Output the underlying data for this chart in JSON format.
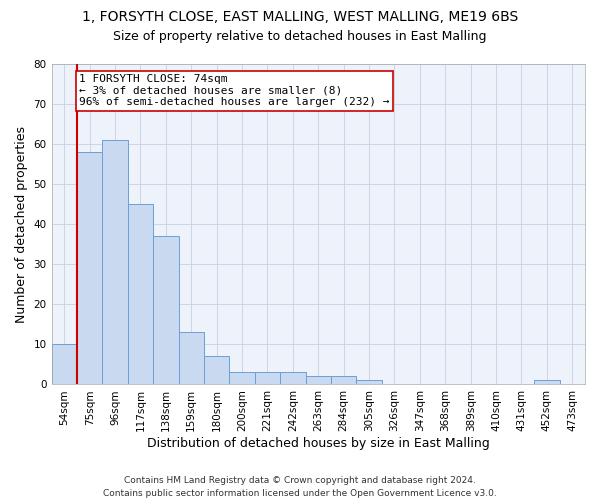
{
  "title1": "1, FORSYTH CLOSE, EAST MALLING, WEST MALLING, ME19 6BS",
  "title2": "Size of property relative to detached houses in East Malling",
  "xlabel": "Distribution of detached houses by size in East Malling",
  "ylabel": "Number of detached properties",
  "categories": [
    "54sqm",
    "75sqm",
    "96sqm",
    "117sqm",
    "138sqm",
    "159sqm",
    "180sqm",
    "200sqm",
    "221sqm",
    "242sqm",
    "263sqm",
    "284sqm",
    "305sqm",
    "326sqm",
    "347sqm",
    "368sqm",
    "389sqm",
    "410sqm",
    "431sqm",
    "452sqm",
    "473sqm"
  ],
  "values": [
    10,
    58,
    61,
    45,
    37,
    13,
    7,
    3,
    3,
    3,
    2,
    2,
    1,
    0,
    0,
    0,
    0,
    0,
    0,
    1,
    0
  ],
  "bar_color": "#c9d9f0",
  "bar_edge_color": "#6a9fd8",
  "vline_color": "#cc0000",
  "annotation_text": "1 FORSYTH CLOSE: 74sqm\n← 3% of detached houses are smaller (8)\n96% of semi-detached houses are larger (232) →",
  "annotation_box_color": "white",
  "annotation_box_edge_color": "#cc0000",
  "ylim": [
    0,
    80
  ],
  "yticks": [
    0,
    10,
    20,
    30,
    40,
    50,
    60,
    70,
    80
  ],
  "grid_color": "#c8d0e0",
  "background_color": "#eef2fa",
  "footer": "Contains HM Land Registry data © Crown copyright and database right 2024.\nContains public sector information licensed under the Open Government Licence v3.0.",
  "title1_fontsize": 10,
  "title2_fontsize": 9,
  "xlabel_fontsize": 9,
  "ylabel_fontsize": 9,
  "tick_fontsize": 7.5,
  "annotation_fontsize": 8,
  "footer_fontsize": 6.5
}
